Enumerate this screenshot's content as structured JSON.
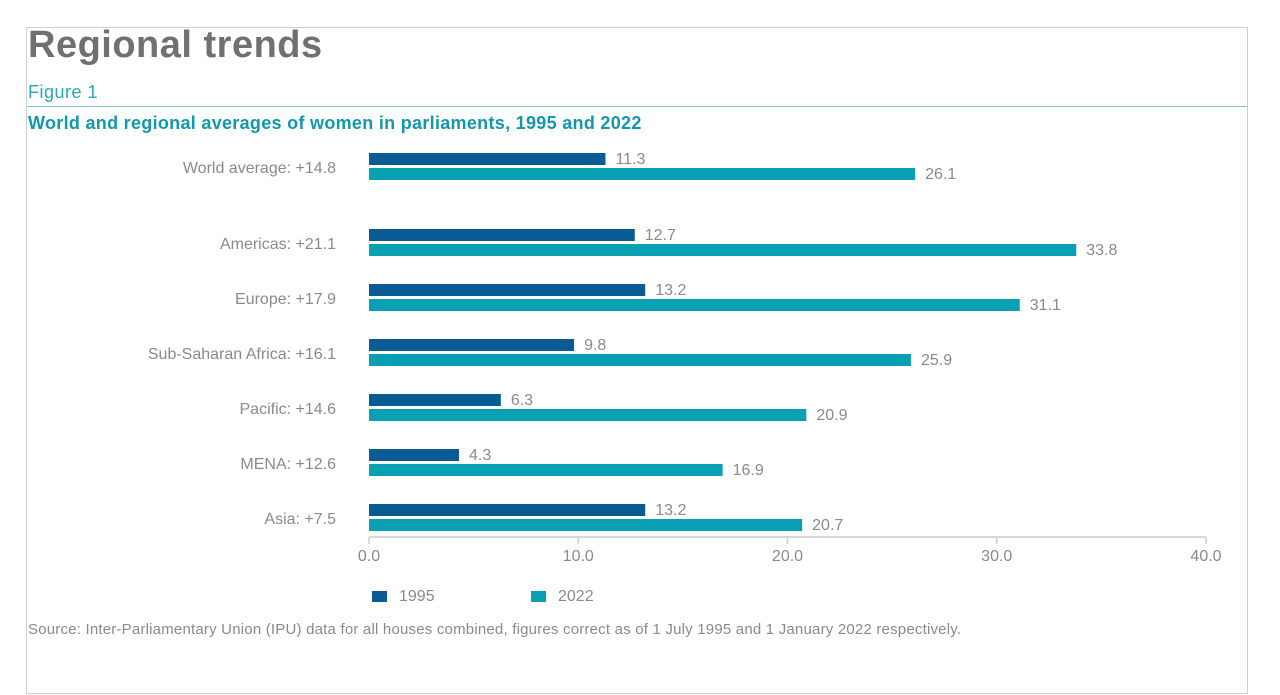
{
  "header": {
    "title": "Regional trends",
    "figure_label": "Figure 1"
  },
  "chart_data": {
    "type": "bar",
    "orientation": "horizontal",
    "title": "World and regional averages of women in parliaments, 1995 and 2022",
    "categories": [
      "World average: +14.8",
      "Americas: +21.1",
      "Europe: +17.9",
      "Sub-Saharan Africa: +16.1",
      "Pacific: +14.6",
      "MENA: +12.6",
      "Asia: +7.5"
    ],
    "series": [
      {
        "name": "1995",
        "color": "#0a5a93",
        "values": [
          11.3,
          12.7,
          13.2,
          9.8,
          6.3,
          4.3,
          13.2
        ],
        "labels": [
          "11.3",
          "12.7",
          "13.2",
          "9.8",
          "6.3",
          "4.3",
          "13.2"
        ]
      },
      {
        "name": "2022",
        "color": "#0aa0b3",
        "values": [
          26.1,
          33.8,
          31.1,
          25.9,
          20.9,
          16.9,
          20.7
        ],
        "labels": [
          "26.1",
          "33.8",
          "31.1",
          "25.9",
          "20.9",
          "16.9",
          "20.7"
        ]
      }
    ],
    "xlim": [
      0,
      40
    ],
    "xticks": [
      "0.0",
      "10.0",
      "20.0",
      "30.0",
      "40.0"
    ],
    "xlabel": "",
    "ylabel": "",
    "grid": false,
    "legend_position": "bottom-left"
  },
  "source": "Source: Inter-Parliamentary Union (IPU) data for all houses combined, figures correct as of 1 July 1995 and 1 January 2022 respectively."
}
